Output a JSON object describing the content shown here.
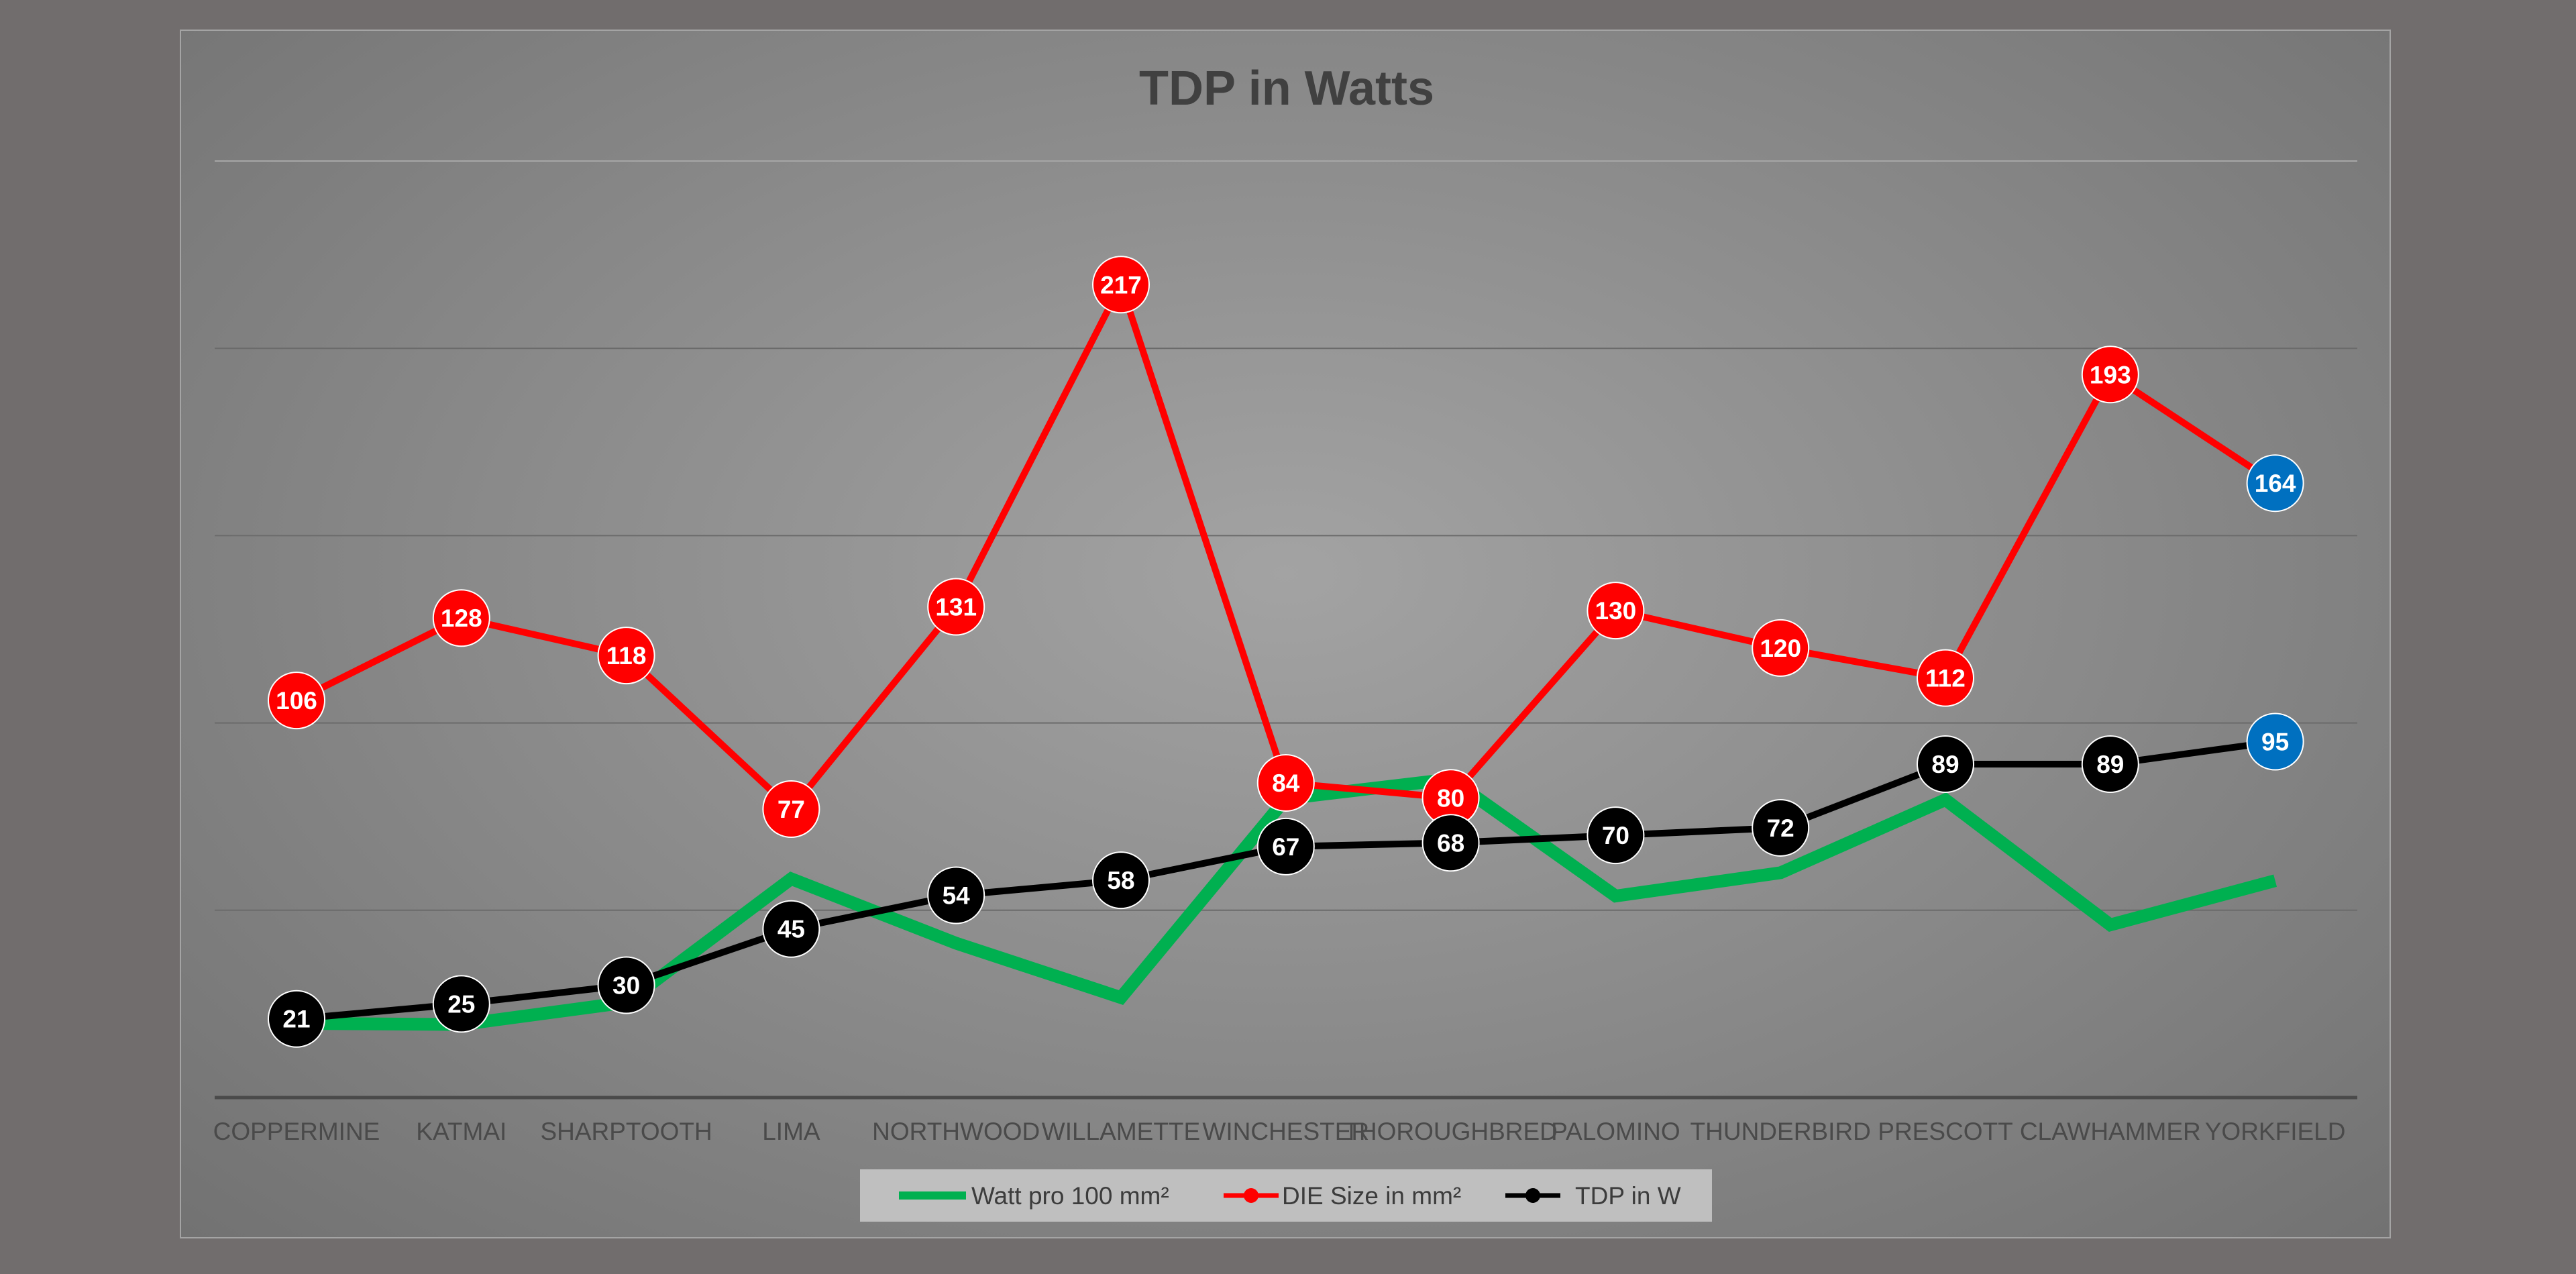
{
  "chart_data": {
    "type": "line",
    "title": "TDP in Watts",
    "categories": [
      "COPPERMINE",
      "KATMAI",
      "SHARPTOOTH",
      "LIMA",
      "NORTHWOOD",
      "WILLAMETTE",
      "WINCHESTER",
      "THOROUGHBRED",
      "PALOMINO",
      "THUNDERBIRD",
      "PRESCOTT",
      "CLAWHAMMER",
      "YORKFIELD"
    ],
    "ylim": [
      0,
      250
    ],
    "grid": true,
    "legend_position": "bottom",
    "series": [
      {
        "name": "Watt pro 100 mm²",
        "color": "#00b050",
        "marker": false,
        "show_labels": false,
        "values": [
          19.8,
          19.5,
          25.4,
          58.4,
          41.2,
          26.7,
          79.8,
          85.0,
          53.8,
          60.0,
          79.5,
          46.1,
          57.9
        ]
      },
      {
        "name": "DIE Size in mm²",
        "color": "#ff0000",
        "marker": true,
        "show_labels": true,
        "values": [
          106,
          128,
          118,
          77,
          131,
          217,
          84,
          80,
          130,
          120,
          112,
          193,
          164
        ]
      },
      {
        "name": "TDP in W",
        "color": "#000000",
        "marker": true,
        "show_labels": true,
        "values": [
          21,
          25,
          30,
          45,
          54,
          58,
          67,
          68,
          70,
          72,
          89,
          89,
          95
        ]
      }
    ],
    "highlight": {
      "index": 12,
      "color": "#0070c0"
    }
  }
}
